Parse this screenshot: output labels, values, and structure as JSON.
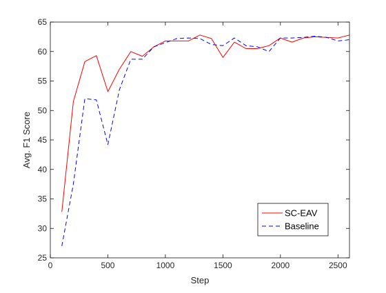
{
  "chart_data": {
    "type": "line",
    "title": "",
    "xlabel": "Step",
    "ylabel": "Avg. F1 Score",
    "xlim": [
      0,
      2600
    ],
    "ylim": [
      25,
      65
    ],
    "xticks": [
      0,
      500,
      1000,
      1500,
      2000,
      2500
    ],
    "yticks": [
      25,
      30,
      35,
      40,
      45,
      50,
      55,
      60,
      65
    ],
    "grid": false,
    "legend_position": "bottom-right",
    "x": [
      100,
      200,
      300,
      400,
      500,
      600,
      700,
      800,
      900,
      1000,
      1100,
      1200,
      1300,
      1400,
      1500,
      1600,
      1700,
      1800,
      1900,
      2000,
      2100,
      2200,
      2300,
      2400,
      2500,
      2600
    ],
    "series": [
      {
        "name": "SC-EAV",
        "color": "#ff0000",
        "style": "solid",
        "values": [
          32.8,
          51.5,
          58.3,
          59.3,
          53.2,
          57.0,
          60.0,
          59.2,
          60.8,
          61.8,
          61.8,
          61.8,
          62.8,
          62.2,
          59.0,
          61.6,
          60.5,
          60.5,
          61.0,
          62.3,
          61.6,
          62.3,
          62.5,
          62.4,
          62.3,
          62.8
        ]
      },
      {
        "name": "Baseline",
        "color": "#0000ff",
        "style": "dashed",
        "values": [
          27.0,
          37.5,
          52.0,
          51.8,
          44.2,
          53.5,
          58.7,
          58.7,
          60.8,
          61.5,
          62.2,
          62.3,
          62.2,
          61.2,
          61.0,
          62.3,
          61.0,
          60.8,
          60.0,
          62.3,
          62.3,
          62.4,
          62.6,
          62.4,
          61.8,
          62.0
        ]
      }
    ]
  }
}
